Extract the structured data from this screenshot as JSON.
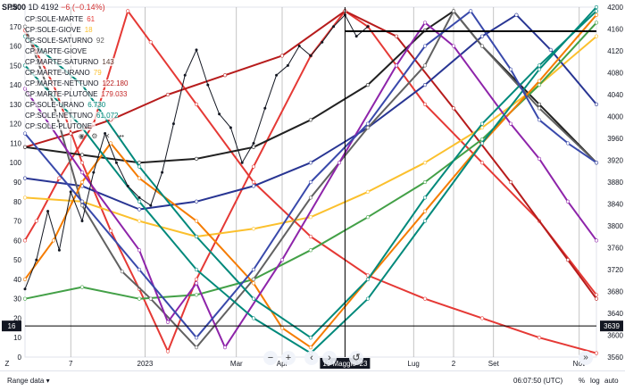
{
  "header": {
    "symbol": "SP500",
    "interval": "1D",
    "price": "4192",
    "change": "−6 (−0.14%)"
  },
  "legend": [
    {
      "label": "CP:SOLE-MARTE",
      "value": "61",
      "color": "#e53935"
    },
    {
      "label": "CP:SOLE-GIOVE",
      "value": "18",
      "color": "#fbc02d"
    },
    {
      "label": "CP:SOLE-SATURNO",
      "value": "92",
      "color": "#616161"
    },
    {
      "label": "CP:MARTE-GIOVE",
      "value": "",
      "color": "#f57c00"
    },
    {
      "label": "CP:MARTE-SATURNO",
      "value": "143",
      "color": "#5d4037"
    },
    {
      "label": "CP:MARTE-URANO",
      "value": "79",
      "color": "#fbc02d"
    },
    {
      "label": "CP:MARTE-NETTUNO",
      "value": "122.180",
      "color": "#b71c1c"
    },
    {
      "label": "CP:MARTE-PLUTONE",
      "value": "179.033",
      "color": "#c62828"
    },
    {
      "label": "CP:SOLE-URANO",
      "value": "6.730",
      "color": "#00897b"
    },
    {
      "label": "CP:SOLE-NETTUNO",
      "value": "61.072",
      "color": "#00897b"
    },
    {
      "label": "CP:SOLE-PLUTONE",
      "value": "",
      "color": "#131722"
    }
  ],
  "legend_controls": [
    "eye-icon",
    "gear-icon",
    "close-icon",
    "more-icon"
  ],
  "chart_controls": {
    "zoom_out": "−",
    "zoom_in": "+",
    "scroll_left": "‹",
    "scroll_right": "›",
    "reset": "↺"
  },
  "collapse_label": "»",
  "footer": {
    "range_label": "Range data",
    "time": "06:07:50 (UTC)",
    "percent": "%",
    "log": "log",
    "auto": "auto"
  },
  "chart_data": {
    "type": "line",
    "x_ticks": [
      {
        "label": "7",
        "t": 0.08
      },
      {
        "label": "2023",
        "t": 0.21
      },
      {
        "label": "Mar",
        "t": 0.37
      },
      {
        "label": "Apr",
        "t": 0.45
      },
      {
        "label": "19 Maggio '23",
        "t": 0.56
      },
      {
        "label": "Lug",
        "t": 0.68
      },
      {
        "label": "2",
        "t": 0.75
      },
      {
        "label": "Set",
        "t": 0.82
      },
      {
        "label": "Nov",
        "t": 0.97
      }
    ],
    "cursor_x_label": "19 Maggio '23",
    "cursor_t": 0.56,
    "left_axis": {
      "min": 0,
      "max": 180,
      "ticks": [
        0,
        10,
        20,
        30,
        40,
        50,
        60,
        70,
        80,
        90,
        100,
        110,
        120,
        130,
        140,
        150,
        160,
        170,
        180
      ]
    },
    "right_axis": {
      "min": 3560,
      "max": 4200,
      "ticks": [
        3560,
        3600,
        3640,
        3680,
        3720,
        3760,
        3800,
        3840,
        3880,
        3920,
        3960,
        4000,
        4040,
        4080,
        4120,
        4160,
        4200
      ]
    },
    "left_label": "16",
    "left_label_value": 16,
    "right_label": "3639",
    "right_label_value": 3639,
    "price_level": 4192,
    "price_level_label": "4192",
    "series": [
      {
        "color": "#e53935",
        "values": [
          [
            0.0,
            60
          ],
          [
            0.02,
            70
          ],
          [
            0.06,
            92
          ],
          [
            0.12,
            120
          ],
          [
            0.18,
            178
          ],
          [
            0.22,
            162
          ],
          [
            0.3,
            130
          ],
          [
            0.4,
            90
          ],
          [
            0.5,
            62
          ],
          [
            0.6,
            42
          ],
          [
            0.7,
            30
          ],
          [
            0.8,
            20
          ],
          [
            0.9,
            10
          ],
          [
            1.0,
            2
          ]
        ]
      },
      {
        "color": "#e53935",
        "values": [
          [
            0.0,
            168
          ],
          [
            0.05,
            140
          ],
          [
            0.1,
            100
          ],
          [
            0.15,
            65
          ],
          [
            0.2,
            35
          ],
          [
            0.25,
            3
          ],
          [
            0.3,
            40
          ],
          [
            0.4,
            98
          ],
          [
            0.5,
            155
          ],
          [
            0.56,
            178
          ],
          [
            0.6,
            170
          ],
          [
            0.7,
            130
          ],
          [
            0.8,
            100
          ],
          [
            0.9,
            70
          ],
          [
            1.0,
            32
          ]
        ]
      },
      {
        "color": "#b71c1c",
        "values": [
          [
            0.0,
            108
          ],
          [
            0.08,
            115
          ],
          [
            0.15,
            122
          ],
          [
            0.25,
            135
          ],
          [
            0.35,
            145
          ],
          [
            0.45,
            155
          ],
          [
            0.56,
            178
          ],
          [
            0.65,
            165
          ],
          [
            0.75,
            128
          ],
          [
            0.85,
            90
          ],
          [
            0.95,
            50
          ],
          [
            1.0,
            30
          ]
        ]
      },
      {
        "color": "#fbc02d",
        "values": [
          [
            0.0,
            82
          ],
          [
            0.1,
            80
          ],
          [
            0.2,
            70
          ],
          [
            0.3,
            62
          ],
          [
            0.4,
            66
          ],
          [
            0.5,
            72
          ],
          [
            0.6,
            85
          ],
          [
            0.7,
            100
          ],
          [
            0.8,
            118
          ],
          [
            0.9,
            140
          ],
          [
            1.0,
            165
          ]
        ]
      },
      {
        "color": "#212121",
        "values": [
          [
            0.0,
            108
          ],
          [
            0.1,
            104
          ],
          [
            0.2,
            100
          ],
          [
            0.3,
            102
          ],
          [
            0.4,
            108
          ],
          [
            0.5,
            122
          ],
          [
            0.6,
            140
          ],
          [
            0.7,
            168
          ],
          [
            0.75,
            178
          ],
          [
            0.8,
            160
          ],
          [
            0.9,
            130
          ],
          [
            1.0,
            100
          ]
        ]
      },
      {
        "color": "#283593",
        "values": [
          [
            0.0,
            92
          ],
          [
            0.1,
            88
          ],
          [
            0.2,
            76
          ],
          [
            0.3,
            80
          ],
          [
            0.4,
            88
          ],
          [
            0.5,
            100
          ],
          [
            0.6,
            118
          ],
          [
            0.7,
            140
          ],
          [
            0.8,
            165
          ],
          [
            0.86,
            176
          ],
          [
            0.92,
            158
          ],
          [
            1.0,
            130
          ]
        ]
      },
      {
        "color": "#43a047",
        "values": [
          [
            0.0,
            30
          ],
          [
            0.1,
            36
          ],
          [
            0.2,
            30
          ],
          [
            0.3,
            32
          ],
          [
            0.4,
            40
          ],
          [
            0.5,
            55
          ],
          [
            0.6,
            72
          ],
          [
            0.7,
            90
          ],
          [
            0.8,
            112
          ],
          [
            0.9,
            140
          ],
          [
            1.0,
            172
          ]
        ]
      },
      {
        "color": "#616161",
        "values": [
          [
            0.0,
            170
          ],
          [
            0.05,
            130
          ],
          [
            0.1,
            78
          ],
          [
            0.17,
            44
          ],
          [
            0.22,
            30
          ],
          [
            0.3,
            5
          ],
          [
            0.4,
            40
          ],
          [
            0.5,
            82
          ],
          [
            0.6,
            118
          ],
          [
            0.7,
            150
          ],
          [
            0.75,
            178
          ],
          [
            0.8,
            160
          ],
          [
            0.9,
            128
          ],
          [
            1.0,
            100
          ]
        ]
      },
      {
        "color": "#f57c00",
        "values": [
          [
            0.0,
            40
          ],
          [
            0.05,
            60
          ],
          [
            0.1,
            90
          ],
          [
            0.15,
            110
          ],
          [
            0.2,
            92
          ],
          [
            0.3,
            70
          ],
          [
            0.4,
            38
          ],
          [
            0.45,
            15
          ],
          [
            0.5,
            5
          ],
          [
            0.6,
            40
          ],
          [
            0.7,
            75
          ],
          [
            0.8,
            110
          ],
          [
            0.9,
            142
          ],
          [
            1.0,
            176
          ]
        ]
      },
      {
        "color": "#8e24aa",
        "values": [
          [
            0.0,
            138
          ],
          [
            0.1,
            95
          ],
          [
            0.2,
            55
          ],
          [
            0.25,
            18
          ],
          [
            0.3,
            38
          ],
          [
            0.35,
            5
          ],
          [
            0.45,
            50
          ],
          [
            0.55,
            100
          ],
          [
            0.65,
            150
          ],
          [
            0.7,
            172
          ],
          [
            0.75,
            160
          ],
          [
            0.85,
            120
          ],
          [
            0.9,
            102
          ],
          [
            0.95,
            80
          ],
          [
            1.0,
            60
          ]
        ]
      },
      {
        "color": "#00897b",
        "values": [
          [
            0.0,
            165
          ],
          [
            0.1,
            140
          ],
          [
            0.2,
            98
          ],
          [
            0.3,
            62
          ],
          [
            0.4,
            30
          ],
          [
            0.5,
            10
          ],
          [
            0.6,
            40
          ],
          [
            0.7,
            82
          ],
          [
            0.8,
            120
          ],
          [
            0.9,
            150
          ],
          [
            1.0,
            178
          ]
        ]
      },
      {
        "color": "#00897b",
        "values": [
          [
            0.0,
            150
          ],
          [
            0.1,
            118
          ],
          [
            0.2,
            80
          ],
          [
            0.3,
            45
          ],
          [
            0.4,
            20
          ],
          [
            0.5,
            2
          ],
          [
            0.6,
            30
          ],
          [
            0.7,
            70
          ],
          [
            0.8,
            110
          ],
          [
            0.9,
            148
          ],
          [
            1.0,
            180
          ]
        ]
      },
      {
        "color": "#3949ab",
        "values": [
          [
            0.0,
            115
          ],
          [
            0.1,
            80
          ],
          [
            0.2,
            45
          ],
          [
            0.3,
            10
          ],
          [
            0.4,
            45
          ],
          [
            0.5,
            90
          ],
          [
            0.6,
            120
          ],
          [
            0.7,
            160
          ],
          [
            0.78,
            178
          ],
          [
            0.85,
            148
          ],
          [
            0.9,
            122
          ],
          [
            0.95,
            110
          ],
          [
            1.0,
            100
          ]
        ]
      }
    ],
    "price_series": [
      [
        0.0,
        35
      ],
      [
        0.02,
        50
      ],
      [
        0.04,
        75
      ],
      [
        0.06,
        55
      ],
      [
        0.08,
        85
      ],
      [
        0.1,
        70
      ],
      [
        0.12,
        95
      ],
      [
        0.14,
        115
      ],
      [
        0.16,
        100
      ],
      [
        0.18,
        88
      ],
      [
        0.2,
        82
      ],
      [
        0.22,
        78
      ],
      [
        0.24,
        95
      ],
      [
        0.26,
        120
      ],
      [
        0.28,
        145
      ],
      [
        0.3,
        158
      ],
      [
        0.32,
        140
      ],
      [
        0.34,
        125
      ],
      [
        0.36,
        118
      ],
      [
        0.38,
        100
      ],
      [
        0.4,
        110
      ],
      [
        0.42,
        128
      ],
      [
        0.44,
        145
      ],
      [
        0.46,
        150
      ],
      [
        0.48,
        160
      ],
      [
        0.5,
        155
      ],
      [
        0.52,
        162
      ],
      [
        0.54,
        170
      ],
      [
        0.56,
        176
      ],
      [
        0.58,
        165
      ],
      [
        0.6,
        170
      ]
    ]
  }
}
